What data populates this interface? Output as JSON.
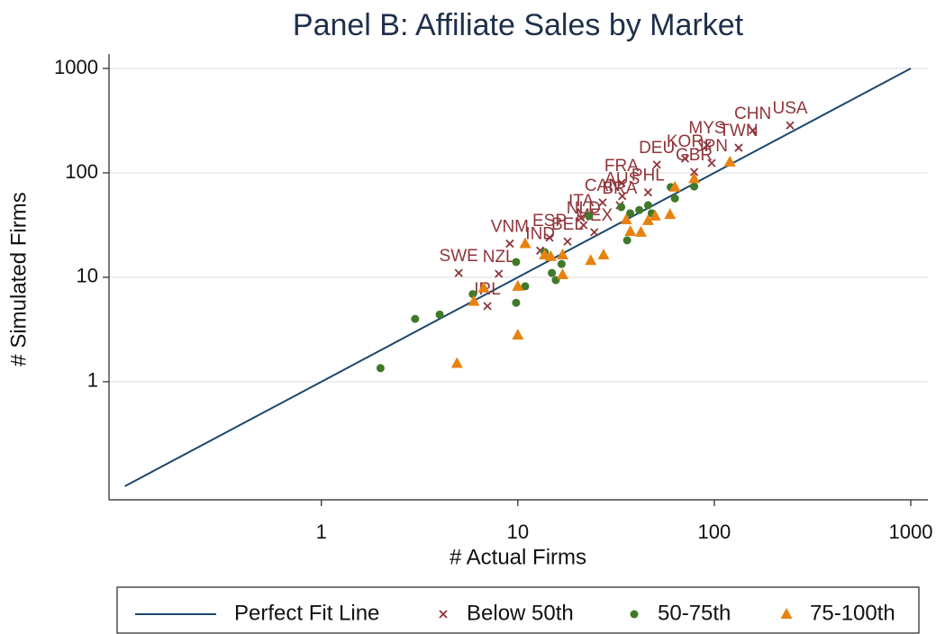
{
  "chart_data": {
    "type": "scatter",
    "title": "Panel B: Affiliate Sales by Market",
    "x_label": "# Actual Firms",
    "y_label": "# Simulated Firms",
    "xscale": "log",
    "yscale": "log",
    "xlim": [
      0.083,
      1222
    ],
    "ylim": [
      0.074,
      1374
    ],
    "xticks": [
      1,
      10,
      100,
      1000
    ],
    "yticks": [
      1,
      10,
      100,
      1000
    ],
    "grid": true,
    "legend": "bottom",
    "series": [
      {
        "name": "Perfect Fit Line",
        "marker": "line",
        "color": "#1a476f",
        "x": [
          0.1,
          1000
        ],
        "values": [
          0.1,
          1000
        ]
      },
      {
        "name": "Below 50th",
        "marker": "x",
        "color": "#90353b",
        "x": [
          243,
          157,
          92,
          133,
          51,
          71,
          79,
          97,
          33.7,
          46,
          34,
          27,
          33,
          21,
          21.6,
          24.5,
          14.5,
          17.9,
          13,
          9.1,
          5,
          8,
          7
        ],
        "values": [
          285,
          255,
          185,
          174,
          120,
          137,
          102,
          124,
          80,
          65,
          60,
          52,
          49,
          37,
          31.6,
          27,
          24,
          22,
          18,
          21,
          11,
          10.8,
          5.3
        ],
        "labels": [
          "USA",
          "CHN",
          "MYS",
          "TWN",
          "DEU",
          "KOR",
          "GBR",
          "JPN",
          "FRA",
          "PHL",
          "AUS",
          "CAN",
          "BRA",
          "ITA",
          "NLD",
          "MEX",
          "ESP",
          "BEL",
          "IND",
          "VNM",
          "SWE",
          "NZL",
          "IRL"
        ]
      },
      {
        "name": "50-75th",
        "marker": "circle",
        "color": "#3e7a2a",
        "x": [
          2,
          3,
          4,
          5.9,
          9.8,
          9.8,
          10.9,
          13.7,
          14.9,
          15.6,
          16.7,
          23,
          33.6,
          36,
          37.3,
          41.5,
          46,
          48,
          63,
          60,
          79
        ],
        "values": [
          1.35,
          4,
          4.4,
          6.9,
          5.7,
          14,
          8.2,
          17.4,
          11,
          9.4,
          13.4,
          38.6,
          47,
          22.6,
          41,
          44,
          49,
          41,
          57,
          73,
          74
        ]
      },
      {
        "name": "75-100th",
        "marker": "triangle",
        "color": "#e8820f",
        "x": [
          4.9,
          5.97,
          6.7,
          10,
          10.9,
          10,
          13.7,
          14.7,
          16.9,
          16.9,
          23.5,
          27.3,
          35.6,
          37.4,
          42.3,
          46,
          50,
          59.5,
          63,
          79,
          120
        ],
        "values": [
          1.5,
          5.9,
          7.9,
          2.8,
          21,
          8.2,
          16.4,
          15.8,
          16.4,
          10.6,
          14.5,
          16.4,
          35.6,
          27.5,
          27,
          35,
          38.6,
          40,
          73,
          88,
          127
        ]
      }
    ]
  }
}
